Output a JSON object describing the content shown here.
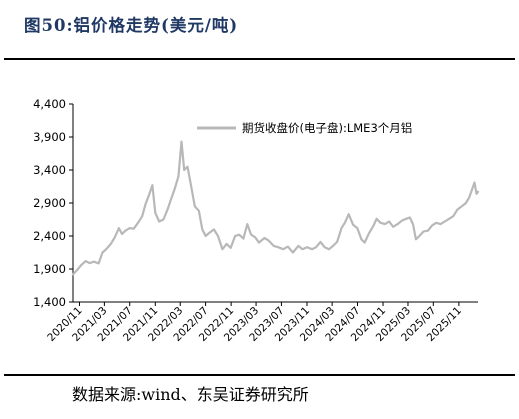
{
  "figure": {
    "title": "图50:铝价格走势(美元/吨)",
    "source": "数据来源:wind、东吴证券研究所"
  },
  "colors": {
    "series": "#b8b8b8",
    "title": "#1f3864",
    "axis": "#000000"
  },
  "chart_data": {
    "type": "line",
    "title": "",
    "xlabel": "",
    "ylabel": "",
    "ylim": [
      1400,
      4400
    ],
    "yticks": [
      1400,
      1900,
      2400,
      2900,
      3400,
      3900,
      4400
    ],
    "ytick_labels": [
      "1,400",
      "1,900",
      "2,400",
      "2,900",
      "3,400",
      "3,900",
      "4,400"
    ],
    "xlim": [
      "2020-10-01",
      "2026-02-01"
    ],
    "xticks": [
      "2020-11",
      "2021-03",
      "2021-07",
      "2021-11",
      "2022-03",
      "2022-07",
      "2022-11",
      "2023-03",
      "2023-07",
      "2023-11",
      "2024-03",
      "2024-07",
      "2024-11",
      "2025-03",
      "2025-07",
      "2025-11"
    ],
    "xtick_labels": [
      "2020/11",
      "2021/03",
      "2021/07",
      "2021/11",
      "2022/03",
      "2022/07",
      "2022/11",
      "2023/03",
      "2023/07",
      "2023/11",
      "2024/03",
      "2024/07",
      "2024/11",
      "2025/03",
      "2025/07",
      "2025/11"
    ],
    "grid": false,
    "legend_position": "top-center",
    "series": [
      {
        "name": "期货收盘价(电子盘):LME3个月铝",
        "points": [
          [
            "2020-10-01",
            1820
          ],
          [
            "2020-10-20",
            1880
          ],
          [
            "2020-11-10",
            1960
          ],
          [
            "2020-12-01",
            2020
          ],
          [
            "2020-12-20",
            1990
          ],
          [
            "2021-01-10",
            2010
          ],
          [
            "2021-02-01",
            1985
          ],
          [
            "2021-02-20",
            2150
          ],
          [
            "2021-03-10",
            2200
          ],
          [
            "2021-04-01",
            2280
          ],
          [
            "2021-04-20",
            2380
          ],
          [
            "2021-05-10",
            2520
          ],
          [
            "2021-05-25",
            2430
          ],
          [
            "2021-06-10",
            2480
          ],
          [
            "2021-07-01",
            2520
          ],
          [
            "2021-07-20",
            2510
          ],
          [
            "2021-08-10",
            2600
          ],
          [
            "2021-08-30",
            2700
          ],
          [
            "2021-09-15",
            2880
          ],
          [
            "2021-10-05",
            3050
          ],
          [
            "2021-10-18",
            3170
          ],
          [
            "2021-11-01",
            2750
          ],
          [
            "2021-11-20",
            2620
          ],
          [
            "2021-12-10",
            2650
          ],
          [
            "2021-12-30",
            2800
          ],
          [
            "2022-01-15",
            2950
          ],
          [
            "2022-02-01",
            3100
          ],
          [
            "2022-02-20",
            3300
          ],
          [
            "2022-03-07",
            3830
          ],
          [
            "2022-03-20",
            3400
          ],
          [
            "2022-04-05",
            3450
          ],
          [
            "2022-04-20",
            3200
          ],
          [
            "2022-05-10",
            2850
          ],
          [
            "2022-05-30",
            2780
          ],
          [
            "2022-06-15",
            2500
          ],
          [
            "2022-07-01",
            2400
          ],
          [
            "2022-07-20",
            2450
          ],
          [
            "2022-08-10",
            2500
          ],
          [
            "2022-08-30",
            2400
          ],
          [
            "2022-09-20",
            2200
          ],
          [
            "2022-10-10",
            2280
          ],
          [
            "2022-10-30",
            2220
          ],
          [
            "2022-11-20",
            2400
          ],
          [
            "2022-12-10",
            2420
          ],
          [
            "2022-12-30",
            2360
          ],
          [
            "2023-01-18",
            2580
          ],
          [
            "2023-02-05",
            2420
          ],
          [
            "2023-02-25",
            2380
          ],
          [
            "2023-03-15",
            2300
          ],
          [
            "2023-04-10",
            2370
          ],
          [
            "2023-05-01",
            2330
          ],
          [
            "2023-05-25",
            2250
          ],
          [
            "2023-06-15",
            2230
          ],
          [
            "2023-07-10",
            2200
          ],
          [
            "2023-08-01",
            2240
          ],
          [
            "2023-08-25",
            2150
          ],
          [
            "2023-09-20",
            2250
          ],
          [
            "2023-10-10",
            2200
          ],
          [
            "2023-11-01",
            2230
          ],
          [
            "2023-11-25",
            2200
          ],
          [
            "2023-12-15",
            2230
          ],
          [
            "2024-01-05",
            2310
          ],
          [
            "2024-01-25",
            2230
          ],
          [
            "2024-02-15",
            2200
          ],
          [
            "2024-03-05",
            2250
          ],
          [
            "2024-03-25",
            2310
          ],
          [
            "2024-04-15",
            2520
          ],
          [
            "2024-05-01",
            2600
          ],
          [
            "2024-05-20",
            2730
          ],
          [
            "2024-06-10",
            2570
          ],
          [
            "2024-06-30",
            2520
          ],
          [
            "2024-07-20",
            2350
          ],
          [
            "2024-08-05",
            2300
          ],
          [
            "2024-08-25",
            2440
          ],
          [
            "2024-09-15",
            2550
          ],
          [
            "2024-10-01",
            2660
          ],
          [
            "2024-10-20",
            2600
          ],
          [
            "2024-11-10",
            2580
          ],
          [
            "2024-11-30",
            2620
          ],
          [
            "2024-12-20",
            2540
          ],
          [
            "2025-01-10",
            2580
          ],
          [
            "2025-01-30",
            2630
          ],
          [
            "2025-02-20",
            2660
          ],
          [
            "2025-03-10",
            2680
          ],
          [
            "2025-03-25",
            2580
          ],
          [
            "2025-04-08",
            2350
          ],
          [
            "2025-04-25",
            2400
          ],
          [
            "2025-05-15",
            2470
          ],
          [
            "2025-06-05",
            2480
          ],
          [
            "2025-06-25",
            2560
          ],
          [
            "2025-07-15",
            2600
          ],
          [
            "2025-08-05",
            2580
          ],
          [
            "2025-08-25",
            2620
          ],
          [
            "2025-09-15",
            2660
          ],
          [
            "2025-10-05",
            2700
          ],
          [
            "2025-10-25",
            2800
          ],
          [
            "2025-11-15",
            2850
          ],
          [
            "2025-12-05",
            2900
          ],
          [
            "2025-12-20",
            2980
          ],
          [
            "2026-01-05",
            3120
          ],
          [
            "2026-01-15",
            3210
          ],
          [
            "2026-01-25",
            3040
          ],
          [
            "2026-02-01",
            3070
          ]
        ]
      }
    ]
  }
}
